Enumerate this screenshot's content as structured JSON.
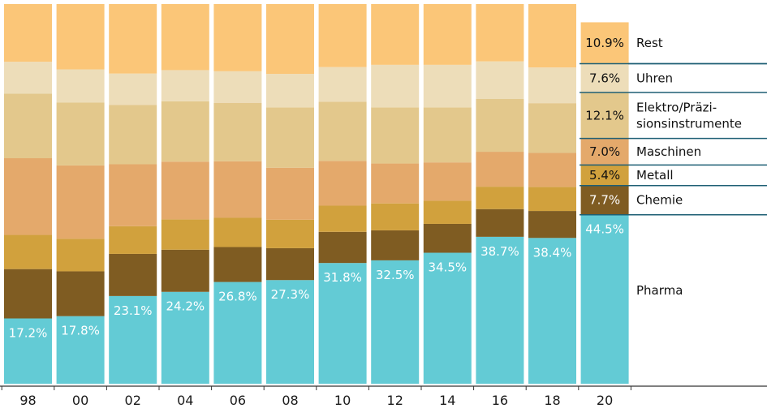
{
  "chart_data": {
    "type": "bar",
    "stacked": true,
    "normalized": true,
    "categories": [
      "98",
      "00",
      "02",
      "04",
      "06",
      "08",
      "10",
      "12",
      "14",
      "16",
      "18",
      "20"
    ],
    "ylim": [
      0,
      100
    ],
    "grid": false,
    "legend_position": "right",
    "series": [
      {
        "name": "Pharma",
        "color": "#63cbd5",
        "label_color": "#ffffff",
        "values": [
          17.2,
          17.8,
          23.1,
          24.2,
          26.8,
          27.3,
          31.8,
          32.5,
          34.5,
          38.7,
          38.4,
          44.5
        ],
        "labels": [
          "17.2%",
          "17.8%",
          "23.1%",
          "24.2%",
          "26.8%",
          "27.3%",
          "31.8%",
          "32.5%",
          "34.5%",
          "38.7%",
          "38.4%",
          "44.5%"
        ]
      },
      {
        "name": "Chemie",
        "color": "#7f5c22",
        "label_color": "#ffffff",
        "values": [
          13.0,
          11.8,
          11.1,
          11.1,
          9.2,
          8.4,
          8.2,
          7.9,
          7.6,
          7.3,
          7.1,
          7.7
        ],
        "labels": [
          "",
          "",
          "",
          "",
          "",
          "",
          "",
          "",
          "",
          "",
          "",
          "7.7%"
        ]
      },
      {
        "name": "Metall",
        "color": "#d1a13d",
        "label_color": "#111111",
        "values": [
          9.0,
          8.6,
          7.3,
          8.0,
          7.7,
          7.5,
          6.9,
          7.1,
          6.1,
          5.9,
          6.3,
          5.4
        ],
        "labels": [
          "",
          "",
          "",
          "",
          "",
          "",
          "",
          "",
          "",
          "",
          "",
          "5.4%"
        ]
      },
      {
        "name": "Maschinen",
        "color": "#e4a96b",
        "label_color": "#111111",
        "values": [
          20.2,
          19.3,
          16.3,
          15.2,
          14.9,
          13.7,
          11.8,
          10.5,
          10.1,
          9.2,
          9.0,
          7.0
        ],
        "labels": [
          "",
          "",
          "",
          "",
          "",
          "",
          "",
          "",
          "",
          "",
          "",
          "7.0%"
        ]
      },
      {
        "name": "Elektro/Präzisionsinstrumente",
        "legend_lines": [
          "Elektro/Präzi-",
          "sionsinstrumente"
        ],
        "color": "#e3c88c",
        "label_color": "#111111",
        "values": [
          17.0,
          16.6,
          15.6,
          15.9,
          15.4,
          15.9,
          15.6,
          14.8,
          14.5,
          13.9,
          13.1,
          12.1
        ],
        "labels": [
          "",
          "",
          "",
          "",
          "",
          "",
          "",
          "",
          "",
          "",
          "",
          "12.1%"
        ]
      },
      {
        "name": "Uhren",
        "color": "#edddb9",
        "label_color": "#111111",
        "values": [
          8.4,
          8.7,
          8.3,
          8.2,
          8.3,
          8.8,
          9.1,
          11.2,
          11.2,
          9.9,
          9.4,
          7.6
        ],
        "labels": [
          "",
          "",
          "",
          "",
          "",
          "",
          "",
          "",
          "",
          "",
          "",
          "7.6%"
        ]
      },
      {
        "name": "Rest",
        "color": "#fbc678",
        "label_color": "#111111",
        "values": [
          15.2,
          17.2,
          18.3,
          17.4,
          17.7,
          18.4,
          16.6,
          16.0,
          16.0,
          15.1,
          16.7,
          10.9
        ],
        "labels": [
          "",
          "",
          "",
          "",
          "",
          "",
          "",
          "",
          "",
          "",
          "",
          "10.9%"
        ]
      }
    ]
  }
}
